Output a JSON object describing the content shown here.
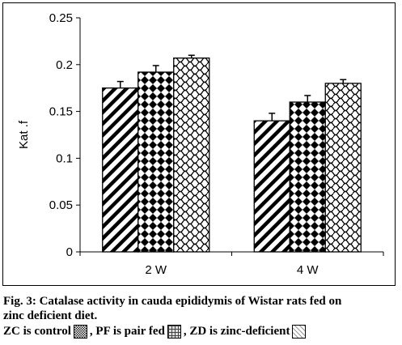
{
  "chart_data": {
    "type": "bar",
    "categories": [
      "2 W",
      "4 W"
    ],
    "series": [
      {
        "name": "ZC",
        "values": [
          0.175,
          0.14
        ],
        "errors": [
          0.007,
          0.008
        ]
      },
      {
        "name": "PF",
        "values": [
          0.192,
          0.16
        ],
        "errors": [
          0.007,
          0.007
        ]
      },
      {
        "name": "ZD",
        "values": [
          0.207,
          0.18
        ],
        "errors": [
          0.003,
          0.004
        ]
      }
    ],
    "ylabel": "Kat .f",
    "xlabel": "",
    "ylim": [
      0,
      0.25
    ],
    "yticks": [
      "0",
      "0.05",
      "0.1",
      "0.15",
      "0.2",
      "0.25"
    ],
    "ytick_values": [
      0,
      0.05,
      0.1,
      0.15,
      0.2,
      0.25
    ],
    "grid": false,
    "patterns": [
      "diagonal-stripes",
      "diamond-checker",
      "wavy-scales"
    ]
  },
  "caption": {
    "line1": "Fig. 3: Catalase activity in cauda epididymis of Wistar rats fed on",
    "line2": "zinc deficient diet."
  },
  "legend": {
    "zc_text": "ZC is control",
    "pf_text": ", PF is pair fed",
    "zd_text": ", ZD is zinc-deficient"
  }
}
